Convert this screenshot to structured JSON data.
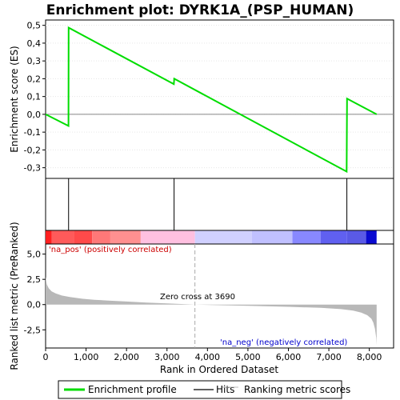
{
  "chart_data": {
    "type": "line",
    "title": "Enrichment plot: DYRK1A_(PSP_HUMAN)",
    "xlabel": "Rank in Ordered Dataset",
    "ylabel_top": "Enrichment score (ES)",
    "ylabel_bottom": "Ranked list metric (PreRanked)",
    "x_range": [
      0,
      8600
    ],
    "x_ticks": [
      0,
      1000,
      2000,
      3000,
      4000,
      5000,
      6000,
      7000,
      8000
    ],
    "x_tick_labels": [
      "0",
      "1,000",
      "2,000",
      "3,000",
      "4,000",
      "5,000",
      "6,000",
      "7,000",
      "8,000"
    ],
    "es_ylim": [
      -0.36,
      0.53
    ],
    "es_ticks": [
      -0.3,
      -0.2,
      -0.1,
      0.0,
      0.1,
      0.2,
      0.3,
      0.4,
      0.5
    ],
    "es_tick_labels": [
      "-0,3",
      "-0,2",
      "-0,1",
      "0,0",
      "0,1",
      "0,2",
      "0,3",
      "0,4",
      "0,5"
    ],
    "metric_ylim": [
      -4.3,
      6.0
    ],
    "metric_ticks": [
      -2.5,
      0.0,
      2.5,
      5.0
    ],
    "metric_tick_labels": [
      "-2,5",
      "0,0",
      "2,5",
      "5,0"
    ],
    "enrichment_profile": {
      "x": [
        0,
        565,
        570,
        3170,
        3180,
        7440,
        7450,
        8180
      ],
      "y": [
        0.0,
        -0.065,
        0.487,
        0.17,
        0.2,
        -0.322,
        0.088,
        0.0
      ]
    },
    "hits": [
      568,
      3175,
      7445
    ],
    "metric_curve": {
      "x": [
        0,
        30,
        80,
        150,
        250,
        400,
        600,
        900,
        1200,
        1600,
        2000,
        2500,
        3000,
        3690,
        4200,
        5000,
        6000,
        6800,
        7300,
        7600,
        7800,
        7950,
        8050,
        8100,
        8140,
        8170,
        8180
      ],
      "y": [
        2.75,
        2.0,
        1.6,
        1.3,
        1.1,
        0.9,
        0.75,
        0.58,
        0.48,
        0.38,
        0.3,
        0.2,
        0.12,
        0.0,
        -0.05,
        -0.12,
        -0.22,
        -0.32,
        -0.45,
        -0.6,
        -0.8,
        -1.05,
        -1.4,
        -1.8,
        -2.4,
        -3.3,
        -4.0
      ]
    },
    "zero_cross": 3690,
    "zero_cross_label": "Zero cross at 3690",
    "pos_label": "'na_pos' (positively correlated)",
    "neg_label": "'na_neg' (negatively correlated)",
    "color_bar": [
      {
        "from": 0,
        "to": 150,
        "color": "#ff2020"
      },
      {
        "from": 150,
        "to": 700,
        "color": "#ff5a5a"
      },
      {
        "from": 700,
        "to": 1150,
        "color": "#ff4a4a"
      },
      {
        "from": 1150,
        "to": 1600,
        "color": "#ff7878"
      },
      {
        "from": 1600,
        "to": 2350,
        "color": "#ff9090"
      },
      {
        "from": 2350,
        "to": 3690,
        "color": "#ffc0e0"
      },
      {
        "from": 3690,
        "to": 5100,
        "color": "#d0d0ff"
      },
      {
        "from": 5100,
        "to": 6100,
        "color": "#c0c0ff"
      },
      {
        "from": 6100,
        "to": 6800,
        "color": "#8888ff"
      },
      {
        "from": 6800,
        "to": 7450,
        "color": "#6060f0"
      },
      {
        "from": 7450,
        "to": 7920,
        "color": "#5a5ae6"
      },
      {
        "from": 7920,
        "to": 8180,
        "color": "#0a0ad0"
      }
    ],
    "colors": {
      "profile": "#00dd00",
      "hits": "#000000",
      "metric_fill": "#b8b8b8",
      "zero_line": "#888888",
      "pos_text": "#cc0000",
      "neg_text": "#0000cc"
    },
    "legend": {
      "placement": "bottom",
      "entries": [
        "Enrichment profile",
        "Hits",
        "Ranking metric scores"
      ]
    }
  }
}
